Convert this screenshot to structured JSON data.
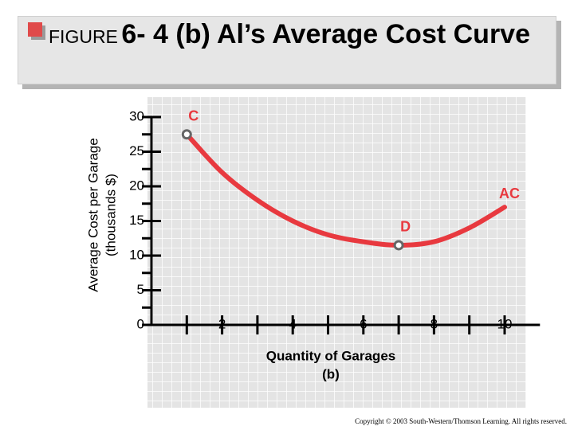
{
  "chart_data": {
    "type": "line",
    "title_prefix": "FIGURE",
    "title": "6- 4 (b) Al’s Average Cost Curve",
    "ylabel": [
      "Average Cost per Garage",
      "(thousands $)"
    ],
    "xlabel": [
      "Quantity of Garages",
      "(b)"
    ],
    "x": [
      1,
      2,
      3,
      4,
      5,
      6,
      7,
      8,
      9,
      10
    ],
    "series": [
      {
        "name": "AC",
        "color": "#e8393f",
        "values": [
          27.5,
          22,
          18,
          15,
          13,
          12,
          11.5,
          12,
          14,
          17
        ]
      }
    ],
    "annotations": [
      {
        "text": "C",
        "x": 1
      },
      {
        "text": "D",
        "x": 7
      }
    ],
    "xlim": [
      0,
      11
    ],
    "ylim": [
      0,
      30
    ],
    "xticks": [
      2,
      4,
      6,
      8,
      10
    ],
    "yticks": [
      0,
      5,
      10,
      15,
      20,
      25,
      30
    ],
    "xminorticks": [
      1,
      3,
      5,
      7,
      9
    ],
    "yminorticks": [
      2.5,
      7.5,
      12.5,
      17.5,
      22.5,
      27.5
    ],
    "footer": "Copyright © 2003 South-Western/Thomson Learning. All rights reserved."
  }
}
